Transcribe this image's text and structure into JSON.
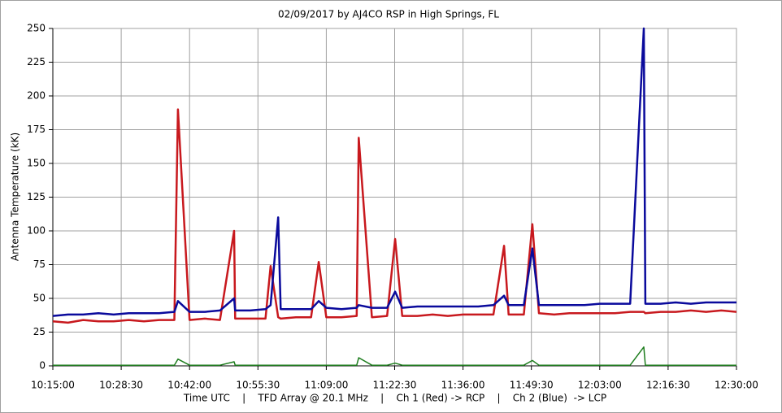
{
  "chart_data": {
    "type": "line",
    "title": "02/09/2017  by  AJ4CO RSP  in  High Springs, FL",
    "y_label": "Antenna Temperature (kK)",
    "x_label": "Time UTC    |    TFD Array @ 20.1 MHz    |    Ch 1 (Red) -> RCP    |    Ch 2 (Blue)  -> LCP",
    "x": [
      "10:15:00",
      "10:18:00",
      "10:21:00",
      "10:24:00",
      "10:27:00",
      "10:30:00",
      "10:33:00",
      "10:36:00",
      "10:39:00",
      "10:39:42",
      "10:42:00",
      "10:45:00",
      "10:48:00",
      "10:50:48",
      "10:51:00",
      "10:54:00",
      "10:57:00",
      "10:58:00",
      "10:59:30",
      "11:00:00",
      "11:03:00",
      "11:06:00",
      "11:07:30",
      "11:09:00",
      "11:12:00",
      "11:15:00",
      "11:15:24",
      "11:18:00",
      "11:21:00",
      "11:22:36",
      "11:24:00",
      "11:27:00",
      "11:30:00",
      "11:33:00",
      "11:36:00",
      "11:39:00",
      "11:42:00",
      "11:44:06",
      "11:45:00",
      "11:48:00",
      "11:49:42",
      "11:51:00",
      "11:54:00",
      "11:57:00",
      "12:00:00",
      "12:03:00",
      "12:06:00",
      "12:09:00",
      "12:11:42",
      "12:12:00",
      "12:15:00",
      "12:18:00",
      "12:21:00",
      "12:24:00",
      "12:27:00",
      "12:30:00"
    ],
    "series": [
      {
        "name": "Ch 1 (Red)",
        "color": "#c8191e",
        "values": [
          33,
          32,
          34,
          33,
          33,
          34,
          33,
          34,
          34,
          190,
          34,
          35,
          34,
          100,
          35,
          35,
          35,
          74,
          36,
          35,
          36,
          36,
          77,
          36,
          36,
          37,
          169,
          36,
          37,
          94,
          37,
          37,
          38,
          37,
          38,
          38,
          38,
          89,
          38,
          38,
          105,
          39,
          38,
          39,
          39,
          39,
          39,
          40,
          40,
          39,
          40,
          40,
          41,
          40,
          41,
          40
        ]
      },
      {
        "name": "Ch 2 (Blue)",
        "color": "#0a0a9c",
        "values": [
          37,
          38,
          38,
          39,
          38,
          39,
          39,
          39,
          40,
          48,
          40,
          40,
          41,
          50,
          41,
          41,
          42,
          45,
          110,
          42,
          42,
          42,
          48,
          43,
          42,
          43,
          45,
          43,
          43,
          55,
          43,
          44,
          44,
          44,
          44,
          44,
          45,
          52,
          45,
          45,
          87,
          45,
          45,
          45,
          45,
          46,
          46,
          46,
          250,
          46,
          46,
          47,
          46,
          47,
          47,
          47
        ]
      },
      {
        "name": "Green",
        "color": "#1e7d1e",
        "values": [
          0.5,
          0.5,
          0.5,
          0.5,
          0.5,
          0.5,
          0.5,
          0.5,
          0.5,
          5,
          0.5,
          0.5,
          0.5,
          3,
          0.5,
          0.5,
          0.5,
          0.5,
          0.5,
          0.5,
          0.5,
          0.5,
          0.5,
          0.5,
          0.5,
          0.5,
          6,
          0.5,
          0.5,
          2,
          0.5,
          0.5,
          0.5,
          0.5,
          0.5,
          0.5,
          0.5,
          0.5,
          0.5,
          0.5,
          4,
          0.5,
          0.5,
          0.5,
          0.5,
          0.5,
          0.5,
          0.5,
          14,
          0.5,
          0.5,
          0.5,
          0.5,
          0.5,
          0.5,
          0.5
        ]
      }
    ],
    "xlim": [
      "10:15:00",
      "12:30:00"
    ],
    "xticks": [
      "10:15:00",
      "10:28:30",
      "10:42:00",
      "10:55:30",
      "11:09:00",
      "11:22:30",
      "11:36:00",
      "11:49:30",
      "12:03:00",
      "12:16:30",
      "12:30:00"
    ],
    "ylim": [
      0,
      250
    ],
    "yticks": [
      0,
      25,
      50,
      75,
      100,
      125,
      150,
      175,
      200,
      225,
      250
    ],
    "grid": true
  }
}
